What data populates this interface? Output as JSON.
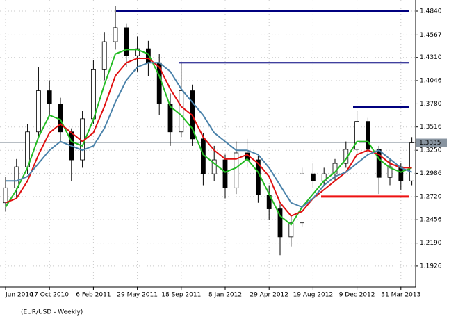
{
  "chart_data": {
    "type": "candlestick",
    "title": "(EUR/USD - Weekly)",
    "x": [
      "Jun 2010",
      null,
      null,
      null,
      "17 Oct 2010",
      null,
      null,
      null,
      "6 Feb 2011",
      null,
      null,
      null,
      "29 May 2011",
      null,
      null,
      null,
      "18 Sep 2011",
      null,
      null,
      null,
      "8 Jan 2012",
      null,
      null,
      null,
      "29 Apr 2012",
      null,
      null,
      null,
      "19 Aug 2012",
      null,
      null,
      null,
      "9 Dec 2012",
      null,
      null,
      null,
      "31 Mar 2013",
      null
    ],
    "open": [
      1.265,
      1.282,
      1.306,
      1.346,
      1.393,
      1.378,
      1.346,
      1.314,
      1.361,
      1.417,
      1.449,
      1.465,
      1.433,
      1.441,
      1.425,
      1.378,
      1.346,
      1.393,
      1.338,
      1.298,
      1.314,
      1.282,
      1.322,
      1.314,
      1.274,
      1.258,
      1.226,
      1.242,
      1.298,
      1.29,
      1.298,
      1.31,
      1.326,
      1.358,
      1.326,
      1.294,
      1.306,
      1.29
    ],
    "high": [
      1.295,
      1.315,
      1.355,
      1.42,
      1.405,
      1.385,
      1.35,
      1.37,
      1.428,
      1.46,
      1.49,
      1.47,
      1.455,
      1.45,
      1.435,
      1.39,
      1.425,
      1.4,
      1.345,
      1.33,
      1.32,
      1.335,
      1.338,
      1.318,
      1.285,
      1.263,
      1.25,
      1.305,
      1.31,
      1.305,
      1.315,
      1.335,
      1.37,
      1.362,
      1.33,
      1.315,
      1.31,
      1.34
    ],
    "low": [
      1.255,
      1.27,
      1.298,
      1.34,
      1.365,
      1.335,
      1.29,
      1.305,
      1.355,
      1.405,
      1.44,
      1.42,
      1.415,
      1.41,
      1.365,
      1.33,
      1.34,
      1.33,
      1.285,
      1.29,
      1.27,
      1.275,
      1.305,
      1.265,
      1.245,
      1.205,
      1.215,
      1.238,
      1.282,
      1.285,
      1.29,
      1.305,
      1.32,
      1.32,
      1.275,
      1.285,
      1.28,
      1.285
    ],
    "close": [
      1.282,
      1.306,
      1.346,
      1.393,
      1.378,
      1.346,
      1.314,
      1.361,
      1.417,
      1.449,
      1.465,
      1.433,
      1.441,
      1.425,
      1.378,
      1.346,
      1.393,
      1.338,
      1.298,
      1.314,
      1.282,
      1.322,
      1.314,
      1.274,
      1.258,
      1.226,
      1.242,
      1.298,
      1.29,
      1.298,
      1.31,
      1.326,
      1.358,
      1.326,
      1.294,
      1.306,
      1.29,
      1.3335
    ],
    "series": [
      {
        "color": "#22bb22",
        "values": [
          1.26,
          1.28,
          1.305,
          1.34,
          1.365,
          1.36,
          1.335,
          1.33,
          1.36,
          1.4,
          1.435,
          1.44,
          1.44,
          1.435,
          1.41,
          1.375,
          1.365,
          1.35,
          1.32,
          1.31,
          1.3,
          1.305,
          1.315,
          1.3,
          1.275,
          1.25,
          1.24,
          1.26,
          1.275,
          1.29,
          1.3,
          1.315,
          1.335,
          1.335,
          1.315,
          1.305,
          1.3,
          1.305
        ]
      },
      {
        "color": "#e01010",
        "values": [
          1.265,
          1.27,
          1.29,
          1.32,
          1.345,
          1.355,
          1.345,
          1.335,
          1.345,
          1.375,
          1.41,
          1.425,
          1.43,
          1.43,
          1.42,
          1.395,
          1.375,
          1.365,
          1.34,
          1.325,
          1.315,
          1.315,
          1.32,
          1.31,
          1.295,
          1.265,
          1.25,
          1.255,
          1.27,
          1.28,
          1.29,
          1.3,
          1.32,
          1.325,
          1.32,
          1.31,
          1.305,
          1.305
        ]
      },
      {
        "color": "#4a82aa",
        "values": [
          1.29,
          1.29,
          1.295,
          1.31,
          1.325,
          1.335,
          1.33,
          1.325,
          1.33,
          1.35,
          1.38,
          1.405,
          1.42,
          1.425,
          1.425,
          1.415,
          1.395,
          1.38,
          1.365,
          1.345,
          1.335,
          1.325,
          1.325,
          1.32,
          1.305,
          1.285,
          1.265,
          1.26,
          1.27,
          1.285,
          1.295,
          1.3,
          1.31,
          1.32,
          1.325,
          1.315,
          1.305,
          1.3
        ]
      }
    ],
    "levels": [
      {
        "value": 1.484,
        "color": "#00007f"
      },
      {
        "value": 1.425,
        "color": "#00007f"
      },
      {
        "value": 1.374,
        "color": "#00007f"
      },
      {
        "value": 1.272,
        "color": "#ee1111"
      }
    ],
    "last_price": {
      "value": 1.3335,
      "label": "1.3335"
    },
    "ylim": [
      1.1687,
      1.4967
    ],
    "yticks": [
      {
        "value": 1.484,
        "label": "1.4840"
      },
      1.4567,
      {
        "value": 1.431,
        "label": "1.4310"
      },
      1.4046,
      {
        "value": 1.378,
        "label": "1.3780"
      },
      1.3516,
      {
        "value": 1.325,
        "label": "1.3250"
      },
      1.2986,
      {
        "value": 1.272,
        "label": "1.2720"
      },
      1.2456,
      {
        "value": 1.219,
        "label": "1.2190"
      },
      1.1926
    ],
    "grid": true
  }
}
